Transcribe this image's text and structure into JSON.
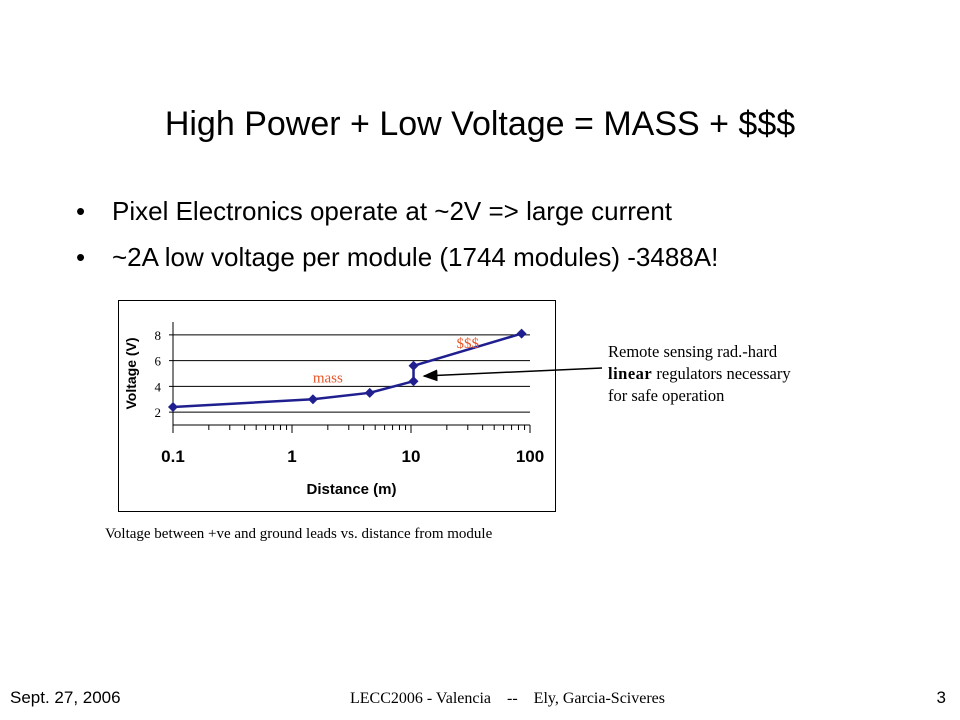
{
  "slide": {
    "title": "High Power + Low Voltage = MASS + $$$",
    "bullets": [
      "Pixel Electronics operate at ~2V => large current",
      "~2A low voltage per module (1744 modules) -3488A!"
    ],
    "caption": "Voltage between +ve and ground leads vs. distance from module",
    "note": {
      "line1": "Remote sensing rad.-hard",
      "emph": "linear",
      "line2_rest": " regulators necessary",
      "line3": "for safe operation"
    },
    "footer": {
      "date": "Sept. 27, 2006",
      "center": "LECC2006 - Valencia    --    Ely, Garcia-Sciveres",
      "page": "3"
    }
  },
  "chart_data": {
    "type": "line",
    "xlabel": "Distance (m)",
    "ylabel": "Voltage (V)",
    "x_scale": "log",
    "xlim": [
      0.1,
      100
    ],
    "ylim": [
      1,
      9
    ],
    "x_tick_labels": [
      "0.1",
      "1",
      "10",
      "100"
    ],
    "y_tick_labels": [
      "2",
      "4",
      "6",
      "8"
    ],
    "y_ticks": [
      2,
      4,
      6,
      8
    ],
    "grid": "horizontal",
    "series": [
      {
        "x": [
          0.1,
          1.5,
          4.5,
          10.5,
          10.5,
          85
        ],
        "y": [
          2.4,
          3.0,
          3.5,
          4.4,
          5.6,
          8.1
        ]
      }
    ],
    "annotations": [
      {
        "text": "mass",
        "x": 2.0,
        "y": 4.3
      },
      {
        "text": "$$$",
        "x": 30,
        "y": 7.0
      }
    ],
    "colors": {
      "line": "#1f1f8f",
      "marker": "#1f1f8f",
      "annotation": "#e8572a"
    }
  }
}
